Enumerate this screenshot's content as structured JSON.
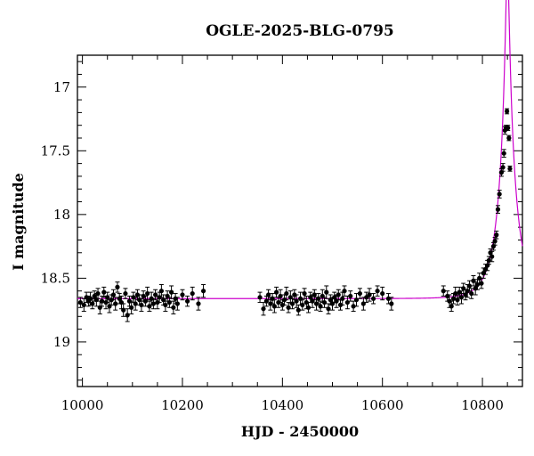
{
  "chart_data": {
    "type": "scatter",
    "title": "OGLE-2025-BLG-0795",
    "xlabel": "HJD - 2450000",
    "ylabel": "I magnitude",
    "xlim": [
      9990,
      10880
    ],
    "ylim": [
      19.35,
      16.75
    ],
    "y_inverted": true,
    "x_major_ticks": [
      10000,
      10200,
      10400,
      10600,
      10800
    ],
    "x_tick_labels": [
      "10000",
      "10200",
      "10400",
      "10600",
      "10800"
    ],
    "x_minor_step": 50,
    "y_major_ticks": [
      17,
      17.5,
      18,
      18.5,
      19
    ],
    "y_tick_labels": [
      "17",
      "17.5",
      "18",
      "18.5",
      "19"
    ],
    "y_minor_step": 0.1,
    "grid": false,
    "colors": {
      "points": "#000000",
      "model": "#cc00cc"
    },
    "model": {
      "type": "paczynski",
      "baseline_mag": 18.66,
      "t0": 10850,
      "u0": 0.09,
      "tE": 35
    },
    "series": [
      {
        "x": [
          9996,
          10003,
          10008,
          10012,
          10016,
          10020,
          10024,
          10028,
          10031,
          10035,
          10039,
          10043,
          10047,
          10050,
          10054,
          10058,
          10062,
          10066,
          10070,
          10074,
          10078,
          10082,
          10086,
          10090,
          10094,
          10098,
          10102,
          10106,
          10110,
          10114,
          10118,
          10122,
          10126,
          10130,
          10134,
          10138,
          10142,
          10146,
          10150,
          10154,
          10158,
          10162,
          10166,
          10170,
          10174,
          10178,
          10182,
          10186,
          10190,
          10200,
          10210,
          10220,
          10232,
          10242,
          10355,
          10362,
          10368,
          10372,
          10376,
          10380,
          10384,
          10388,
          10392,
          10396,
          10400,
          10404,
          10408,
          10412,
          10416,
          10420,
          10424,
          10428,
          10432,
          10436,
          10440,
          10444,
          10448,
          10452,
          10456,
          10460,
          10464,
          10468,
          10472,
          10476,
          10480,
          10484,
          10488,
          10492,
          10496,
          10500,
          10504,
          10508,
          10512,
          10516,
          10520,
          10524,
          10530,
          10536,
          10542,
          10548,
          10555,
          10562,
          10568,
          10574,
          10582,
          10590,
          10600,
          10612,
          10618,
          10722,
          10730,
          10734,
          10738,
          10742,
          10746,
          10750,
          10754,
          10758,
          10762,
          10766,
          10770,
          10774,
          10778,
          10782,
          10786,
          10790,
          10794,
          10798,
          10802,
          10806,
          10810,
          10813,
          10816,
          10819,
          10822,
          10825,
          10828,
          10831,
          10834,
          10838,
          10841,
          10843,
          10845,
          10847,
          10849,
          10851,
          10853,
          10855
        ],
        "y": [
          18.69,
          18.71,
          18.65,
          18.68,
          18.66,
          18.7,
          18.64,
          18.67,
          18.62,
          18.73,
          18.68,
          18.61,
          18.69,
          18.65,
          18.72,
          18.67,
          18.63,
          18.7,
          18.57,
          18.66,
          18.69,
          18.75,
          18.62,
          18.79,
          18.68,
          18.73,
          18.65,
          18.7,
          18.63,
          18.67,
          18.71,
          18.64,
          18.68,
          18.62,
          18.72,
          18.66,
          18.7,
          18.63,
          18.69,
          18.65,
          18.6,
          18.67,
          18.71,
          18.64,
          18.69,
          18.61,
          18.73,
          18.66,
          18.7,
          18.63,
          18.68,
          18.62,
          18.7,
          18.6,
          18.65,
          18.74,
          18.68,
          18.63,
          18.7,
          18.66,
          18.72,
          18.61,
          18.69,
          18.64,
          18.71,
          18.67,
          18.62,
          18.73,
          18.65,
          18.7,
          18.63,
          18.68,
          18.75,
          18.66,
          18.71,
          18.62,
          18.69,
          18.73,
          18.65,
          18.68,
          18.63,
          18.7,
          18.66,
          18.72,
          18.64,
          18.69,
          18.61,
          18.74,
          18.67,
          18.7,
          18.65,
          18.68,
          18.63,
          18.71,
          18.66,
          18.6,
          18.69,
          18.64,
          18.72,
          18.67,
          18.62,
          18.7,
          18.65,
          18.63,
          18.66,
          18.6,
          18.62,
          18.66,
          18.7,
          18.6,
          18.64,
          18.68,
          18.72,
          18.66,
          18.62,
          18.67,
          18.61,
          18.65,
          18.58,
          18.63,
          18.6,
          18.56,
          18.62,
          18.52,
          18.58,
          18.55,
          18.5,
          18.54,
          18.46,
          18.43,
          18.4,
          18.36,
          18.3,
          18.33,
          18.25,
          18.21,
          18.16,
          17.96,
          17.84,
          17.67,
          17.63,
          17.52,
          17.34,
          17.32,
          17.19,
          17.32,
          17.4,
          17.64
        ],
        "err": [
          0.04,
          0.05,
          0.04,
          0.04,
          0.05,
          0.04,
          0.04,
          0.05,
          0.04,
          0.05,
          0.04,
          0.04,
          0.05,
          0.04,
          0.05,
          0.04,
          0.04,
          0.05,
          0.04,
          0.04,
          0.05,
          0.05,
          0.04,
          0.05,
          0.04,
          0.05,
          0.04,
          0.05,
          0.04,
          0.04,
          0.05,
          0.04,
          0.04,
          0.05,
          0.04,
          0.05,
          0.04,
          0.04,
          0.05,
          0.04,
          0.05,
          0.04,
          0.05,
          0.04,
          0.04,
          0.05,
          0.05,
          0.04,
          0.05,
          0.04,
          0.04,
          0.05,
          0.05,
          0.05,
          0.04,
          0.05,
          0.04,
          0.04,
          0.05,
          0.04,
          0.05,
          0.04,
          0.04,
          0.05,
          0.04,
          0.04,
          0.05,
          0.04,
          0.05,
          0.04,
          0.04,
          0.05,
          0.04,
          0.05,
          0.04,
          0.04,
          0.05,
          0.04,
          0.04,
          0.05,
          0.04,
          0.05,
          0.04,
          0.04,
          0.05,
          0.04,
          0.05,
          0.04,
          0.04,
          0.05,
          0.04,
          0.05,
          0.04,
          0.04,
          0.05,
          0.04,
          0.05,
          0.04,
          0.04,
          0.05,
          0.04,
          0.05,
          0.04,
          0.05,
          0.04,
          0.04,
          0.05,
          0.04,
          0.05,
          0.04,
          0.04,
          0.05,
          0.04,
          0.04,
          0.05,
          0.04,
          0.04,
          0.05,
          0.04,
          0.04,
          0.05,
          0.04,
          0.04,
          0.04,
          0.05,
          0.04,
          0.04,
          0.04,
          0.04,
          0.04,
          0.04,
          0.03,
          0.03,
          0.04,
          0.03,
          0.03,
          0.03,
          0.03,
          0.03,
          0.03,
          0.03,
          0.03,
          0.03,
          0.02,
          0.02,
          0.02,
          0.02,
          0.02
        ]
      }
    ]
  }
}
